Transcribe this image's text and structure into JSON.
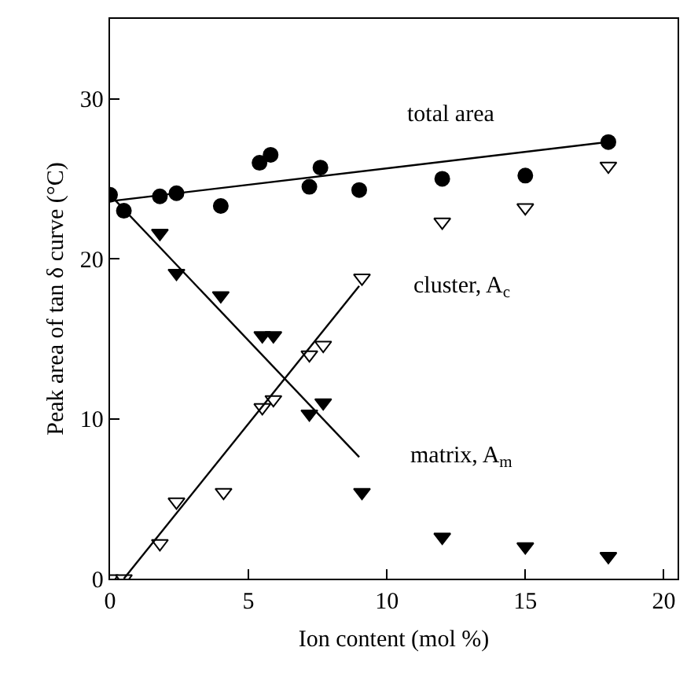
{
  "chart_data": {
    "type": "scatter",
    "xlabel": "Ion content (mol %)",
    "ylabel": "Peak area of tan δ curve (°C)",
    "xlim": [
      0,
      20.5
    ],
    "ylim": [
      0,
      35
    ],
    "xticks": [
      0,
      5,
      10,
      15,
      20
    ],
    "yticks": [
      0,
      10,
      20,
      30
    ],
    "grid": false,
    "series": [
      {
        "type": "scatter",
        "marker": "circle",
        "color": "#000000",
        "x": [
          0,
          0.5,
          1.8,
          2.4,
          4.0,
          5.4,
          5.8,
          7.2,
          7.6,
          9.0,
          12,
          15,
          18
        ],
        "values": [
          24.0,
          23.0,
          23.9,
          24.1,
          23.3,
          26.0,
          26.5,
          24.5,
          25.7,
          24.3,
          25.0,
          25.2,
          27.3
        ]
      },
      {
        "type": "scatter",
        "marker": "triangle",
        "color": "#ffffff",
        "x": [
          0,
          0.5,
          1.8,
          2.4,
          4.1,
          5.5,
          5.9,
          7.2,
          7.7,
          9.1,
          12,
          15,
          18
        ],
        "values": [
          0,
          0,
          2.2,
          4.8,
          5.4,
          10.7,
          11.2,
          14.0,
          14.6,
          18.8,
          22.3,
          23.2,
          25.8
        ]
      },
      {
        "type": "scatter",
        "marker": "triangle",
        "color": "#000000",
        "x": [
          1.8,
          2.4,
          4.0,
          5.5,
          5.9,
          7.2,
          7.7,
          9.1,
          12,
          15,
          18
        ],
        "values": [
          21.6,
          19.1,
          17.7,
          15.2,
          15.2,
          10.3,
          11.0,
          5.4,
          2.6,
          2.0,
          1.4
        ]
      },
      {
        "type": "line",
        "color": "#000000",
        "x": [
          0,
          18
        ],
        "values": [
          23.6,
          27.3
        ]
      },
      {
        "type": "line",
        "color": "#000000",
        "x": [
          0.5,
          9
        ],
        "values": [
          0,
          18.3
        ]
      },
      {
        "type": "line",
        "color": "#000000",
        "x": [
          0,
          9
        ],
        "values": [
          24,
          7.6
        ]
      }
    ],
    "annotations": [
      "total area",
      "cluster, A$_{c}$",
      "matrix, A$_{m}$"
    ]
  }
}
